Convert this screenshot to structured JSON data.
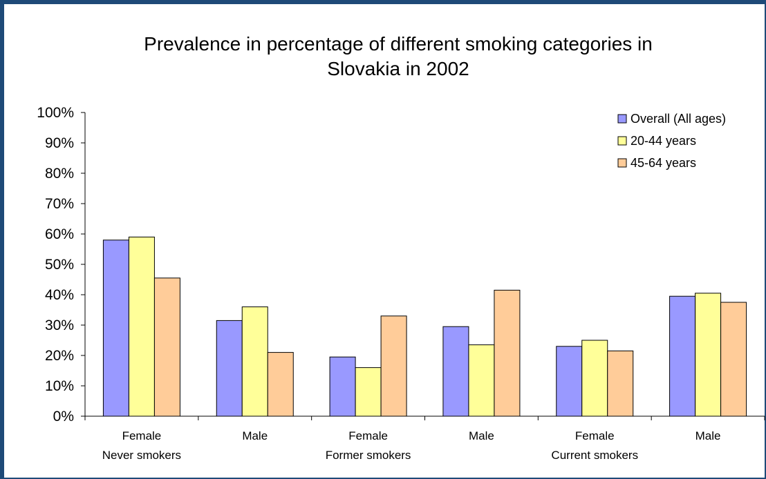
{
  "chart_data": {
    "type": "bar",
    "title_line1": "Prevalence in percentage of different smoking categories in",
    "title_line2": "Slovakia in 2002",
    "xlabel": "",
    "ylabel": "",
    "ylim": [
      0,
      100
    ],
    "y_ticks": [
      "0%",
      "10%",
      "20%",
      "30%",
      "40%",
      "50%",
      "60%",
      "70%",
      "80%",
      "90%",
      "100%"
    ],
    "categories": [
      {
        "line1": "Female",
        "line2": "Never smokers"
      },
      {
        "line1": "Male",
        "line2": ""
      },
      {
        "line1": "Female",
        "line2": "Former smokers"
      },
      {
        "line1": "Male",
        "line2": ""
      },
      {
        "line1": "Female",
        "line2": "Current smokers"
      },
      {
        "line1": "Male",
        "line2": ""
      }
    ],
    "series": [
      {
        "name": "Overall (All ages)",
        "color": "#9999ff",
        "values": [
          58,
          31.5,
          19.5,
          29.5,
          23,
          39.5
        ]
      },
      {
        "name": "20-44 years",
        "color": "#ffff99",
        "values": [
          59,
          36,
          16,
          23.5,
          25,
          40.5
        ]
      },
      {
        "name": "45-64 years",
        "color": "#ffcc99",
        "values": [
          45.5,
          21,
          33,
          41.5,
          21.5,
          37.5
        ]
      }
    ],
    "grid": false,
    "legend_position": "top-right"
  }
}
